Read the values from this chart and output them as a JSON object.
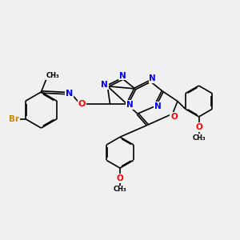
{
  "background_color": "#f0f0f0",
  "bond_color": "#000000",
  "N_color": "#0000ff",
  "O_color": "#ff0000",
  "Br_color": "#cc8800",
  "lw": 1.2,
  "fs": 7.5,
  "dbo": 0.035,
  "xlim": [
    0,
    10
  ],
  "ylim": [
    2.0,
    10.0
  ]
}
